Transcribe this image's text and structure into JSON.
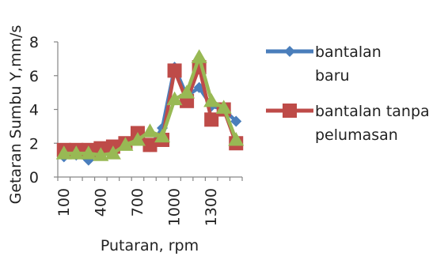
{
  "chart_data": {
    "type": "line",
    "title": "",
    "xlabel": "Putaran, rpm",
    "ylabel": "Getaran Sumbu Y,mm/s",
    "x": [
      100,
      200,
      300,
      400,
      500,
      600,
      700,
      800,
      900,
      1000,
      1100,
      1200,
      1300,
      1400,
      1500
    ],
    "x_tick_labels": [
      "100",
      "400",
      "700",
      "1000",
      "1300"
    ],
    "x_tick_values": [
      100,
      400,
      700,
      1000,
      1300
    ],
    "ylim": [
      0,
      8
    ],
    "y_ticks": [
      "0",
      "2",
      "4",
      "6",
      "8"
    ],
    "y_tick_values": [
      0,
      2,
      4,
      6,
      8
    ],
    "grid": false,
    "legend_position": "right",
    "series": [
      {
        "name": "bantalan baru",
        "legend_lines": [
          "bantalan",
          "baru"
        ],
        "marker": "diamond",
        "color": "#4a7ebb",
        "values": [
          1.2,
          1.3,
          1.0,
          1.5,
          1.4,
          1.9,
          2.3,
          1.8,
          2.9,
          6.5,
          4.8,
          5.3,
          4.2,
          4.0,
          3.3
        ]
      },
      {
        "name": "bantalan tanpa pelumasan",
        "legend_lines": [
          "bantalan tanpa",
          "pelumasan"
        ],
        "marker": "square",
        "color": "#be4b48",
        "values": [
          1.6,
          1.6,
          1.6,
          1.7,
          1.8,
          2.0,
          2.6,
          1.9,
          2.2,
          6.3,
          4.5,
          6.5,
          3.4,
          4.0,
          2.0
        ]
      },
      {
        "name": "",
        "legend_lines": [],
        "marker": "triangle",
        "color": "#98b954",
        "values": [
          1.4,
          1.4,
          1.4,
          1.3,
          1.4,
          1.9,
          2.2,
          2.7,
          2.4,
          4.6,
          5.0,
          7.1,
          4.5,
          4.1,
          2.2
        ]
      }
    ]
  }
}
